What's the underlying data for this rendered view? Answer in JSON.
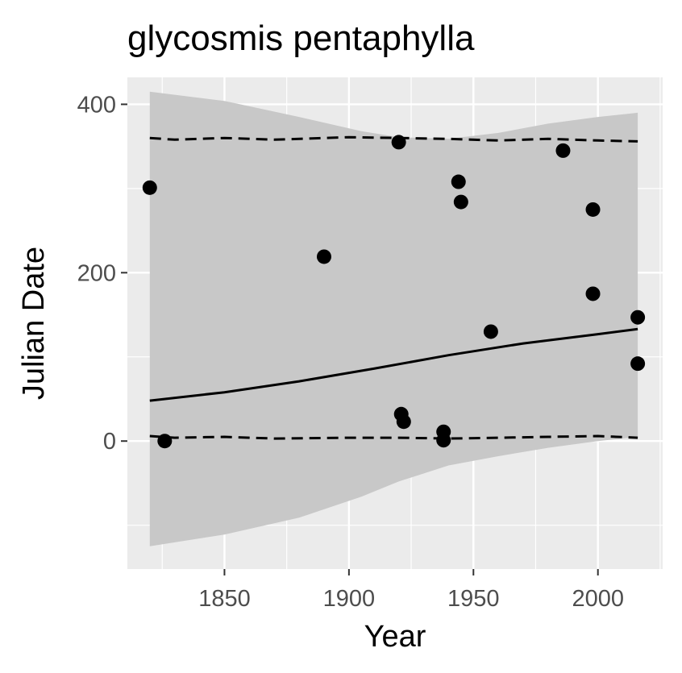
{
  "chart_data": {
    "type": "scatter",
    "title": "glycosmis pentaphylla",
    "xlabel": "Year",
    "ylabel": "Julian Date",
    "xlim": [
      1811,
      2026
    ],
    "ylim": [
      -152,
      432
    ],
    "x_ticks": [
      1850,
      1900,
      1950,
      2000
    ],
    "x_minor_ticks": [
      1825,
      1875,
      1925,
      1975,
      2025
    ],
    "y_ticks": [
      0,
      200,
      400
    ],
    "y_minor_ticks": [
      -100,
      100,
      300
    ],
    "x_tick_labels": [
      "1850",
      "1900",
      "1950",
      "2000"
    ],
    "y_tick_labels": [
      "0",
      "200",
      "400"
    ],
    "grid": true,
    "legend": "none",
    "colors": {
      "panel_background": "#ebebeb",
      "gridline": "#ffffff",
      "ribbon": "#c8c8c8",
      "points": "#000000",
      "trend_line": "#000000",
      "quantile_lines": "#000000"
    },
    "points": [
      {
        "x": 1820,
        "y": 301
      },
      {
        "x": 1826,
        "y": 0
      },
      {
        "x": 1890,
        "y": 219
      },
      {
        "x": 1920,
        "y": 355
      },
      {
        "x": 1921,
        "y": 32
      },
      {
        "x": 1922,
        "y": 23
      },
      {
        "x": 1938,
        "y": 11
      },
      {
        "x": 1938,
        "y": 1
      },
      {
        "x": 1944,
        "y": 308
      },
      {
        "x": 1945,
        "y": 284
      },
      {
        "x": 1957,
        "y": 130
      },
      {
        "x": 1986,
        "y": 345
      },
      {
        "x": 1998,
        "y": 275
      },
      {
        "x": 1998,
        "y": 175
      },
      {
        "x": 2016,
        "y": 147
      },
      {
        "x": 2016,
        "y": 92
      }
    ],
    "trend_line": {
      "x": [
        1820,
        1850,
        1880,
        1910,
        1940,
        1970,
        2000,
        2016
      ],
      "y": [
        48,
        58,
        71,
        86,
        102,
        116,
        127,
        133
      ]
    },
    "confidence_band": {
      "x": [
        1820,
        1850,
        1880,
        1905,
        1920,
        1940,
        1960,
        1980,
        2000,
        2016
      ],
      "upper": [
        415,
        404,
        385,
        368,
        361,
        359,
        366,
        377,
        385,
        390
      ],
      "lower": [
        -125,
        -111,
        -91,
        -66,
        -48,
        -29,
        -18,
        -8,
        0,
        5
      ]
    },
    "upper_quantile_line": {
      "x": [
        1820,
        1830,
        1850,
        1870,
        1900,
        1920,
        1940,
        1960,
        1980,
        2000,
        2016
      ],
      "y": [
        360,
        358,
        360,
        358,
        361,
        360,
        359,
        357,
        359,
        357,
        356
      ]
    },
    "lower_quantile_line": {
      "x": [
        1820,
        1830,
        1850,
        1870,
        1900,
        1920,
        1940,
        1960,
        1980,
        2000,
        2016
      ],
      "y": [
        6,
        4,
        5,
        3,
        4,
        4,
        3,
        4,
        5,
        6,
        4
      ]
    }
  }
}
